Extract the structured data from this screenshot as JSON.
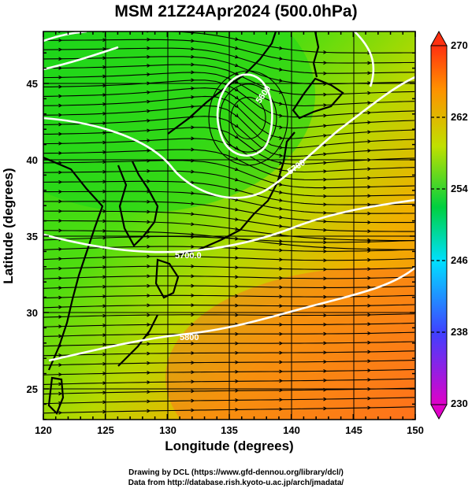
{
  "title": "MSM 21Z24Apr2024 (500.0hPa)",
  "map": {
    "xlabel": "Longitude (degrees)",
    "ylabel": "Latitude  (degrees)",
    "x_range": [
      120,
      150
    ],
    "y_range": [
      22.5,
      47.6
    ],
    "x_ticks": [
      "120",
      "125",
      "130",
      "135",
      "140",
      "145",
      "150"
    ],
    "y_ticks": [
      "25",
      "30",
      "35",
      "40",
      "45"
    ],
    "grid": true
  },
  "colorbar": {
    "ticks": [
      "230",
      "238",
      "246",
      "254",
      "262",
      "270"
    ],
    "range": [
      230,
      270
    ],
    "colors": [
      "#e000c8",
      "#4040ff",
      "#00e0ff",
      "#00d040",
      "#c0e000",
      "#ff9000",
      "#ff3010"
    ]
  },
  "contour_labels": [
    "5600",
    "5700.0",
    "5800",
    "5700"
  ],
  "credits": {
    "line1": "Drawing by DCL (https://www.gfd-dennou.org/library/dcl/)",
    "line2": "Data from http://database.rish.kyoto-u.ac.jp/arch/jmadata/"
  }
}
